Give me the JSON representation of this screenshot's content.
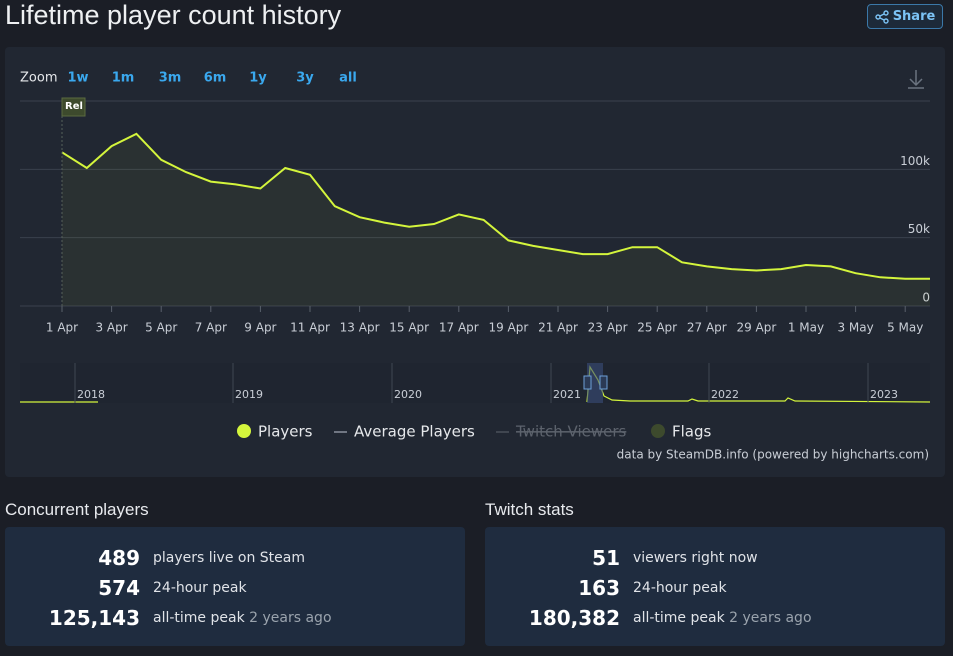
{
  "header": {
    "title": "Lifetime player count history",
    "share": "Share"
  },
  "zoom": {
    "label": "Zoom",
    "options": [
      "1w",
      "1m",
      "3m",
      "6m",
      "1y",
      "3y",
      "all"
    ]
  },
  "chart_data": {
    "type": "line",
    "categories": [
      "1 Apr",
      null,
      "3 Apr",
      null,
      "5 Apr",
      null,
      "7 Apr",
      null,
      "9 Apr",
      null,
      "11 Apr",
      null,
      "13 Apr",
      null,
      "15 Apr",
      null,
      "17 Apr",
      null,
      "19 Apr",
      null,
      "21 Apr",
      null,
      "23 Apr",
      null,
      "25 Apr",
      null,
      "27 Apr",
      null,
      "29 Apr",
      null,
      "1 May",
      null,
      "3 May",
      null,
      "5 May",
      null
    ],
    "series": [
      {
        "name": "Players",
        "color": "#d4f53c",
        "values": [
          112500,
          101000,
          117000,
          126000,
          107000,
          98000,
          91000,
          89000,
          86000,
          101000,
          96000,
          73000,
          65000,
          61000,
          58000,
          60000,
          67000,
          63000,
          48000,
          44000,
          41000,
          38000,
          38000,
          43000,
          43000,
          32000,
          29000,
          27000,
          26000,
          27000,
          30000,
          29000,
          24000,
          21000,
          20000,
          20000
        ]
      }
    ],
    "ylim": [
      0,
      150000
    ],
    "yticks": [
      0,
      {
        "value": 50000,
        "label": "50k"
      },
      {
        "value": 100000,
        "label": "100k"
      }
    ],
    "grid": true,
    "flag": "Rel",
    "other_legend": [
      "Average Players",
      "Twitch Viewers",
      "Flags"
    ]
  },
  "navigator": {
    "labels": [
      "2018",
      "2019",
      "2020",
      "2021",
      "2022",
      "2023"
    ]
  },
  "credit": "data by SteamDB.info (powered by highcharts.com)",
  "concurrent": {
    "title": "Concurrent players",
    "rows": [
      {
        "value": "489",
        "label": "players live on Steam"
      },
      {
        "value": "574",
        "label": "24-hour peak"
      },
      {
        "value": "125,143",
        "label": "all-time peak",
        "note": "2 years ago"
      }
    ]
  },
  "twitch": {
    "title": "Twitch stats",
    "rows": [
      {
        "value": "51",
        "label": "viewers right now"
      },
      {
        "value": "163",
        "label": "24-hour peak"
      },
      {
        "value": "180,382",
        "label": "all-time peak",
        "note": "2 years ago"
      }
    ]
  }
}
